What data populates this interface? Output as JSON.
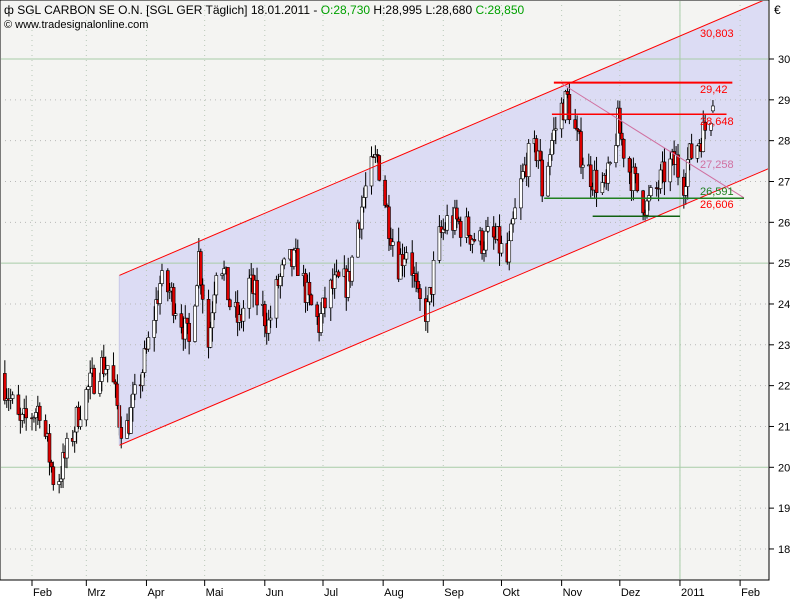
{
  "header": {
    "title": "SGL CARBON SE O.N. [SGL GER  Täglich] 18.01.2011 - ",
    "open": "O:28,730",
    "high": " H:28,995",
    "low": " L:28,680",
    "close": " C:28,850",
    "copyright": "www.tradesignalonline.com"
  },
  "chart_data": {
    "type": "candlestick",
    "currency_label": "€",
    "ylim": [
      17.2,
      31.5
    ],
    "y_ticks": [
      18,
      19,
      20,
      21,
      22,
      23,
      24,
      25,
      26,
      27,
      28,
      29,
      30
    ],
    "x_ticks": [
      {
        "date": "2010-02-01",
        "label": "Feb"
      },
      {
        "date": "2010-03-01",
        "label": "Mrz"
      },
      {
        "date": "2010-04-01",
        "label": "Apr"
      },
      {
        "date": "2010-05-01",
        "label": "Mai"
      },
      {
        "date": "2010-06-01",
        "label": "Jun"
      },
      {
        "date": "2010-07-01",
        "label": "Jul"
      },
      {
        "date": "2010-08-01",
        "label": "Aug"
      },
      {
        "date": "2010-09-01",
        "label": "Sep"
      },
      {
        "date": "2010-10-01",
        "label": "Okt"
      },
      {
        "date": "2010-11-01",
        "label": "Nov"
      },
      {
        "date": "2010-12-01",
        "label": "Dez"
      },
      {
        "date": "2011-01-01",
        "label": "2011"
      },
      {
        "date": "2011-02-01",
        "label": "Feb"
      }
    ],
    "grid": true,
    "major_gridlines": [
      20,
      25,
      30
    ],
    "year_line": "2011-01-01",
    "closes": [
      [
        "2010-01-16",
        22.3
      ],
      [
        "2010-01-26",
        21.0
      ],
      [
        "2010-02-05",
        21.5
      ],
      [
        "2010-02-13",
        19.5
      ],
      [
        "2010-02-20",
        20.5
      ],
      [
        "2010-02-26",
        21.5
      ],
      [
        "2010-03-08",
        22.5
      ],
      [
        "2010-03-13",
        22.5
      ],
      [
        "2010-03-18",
        21.2
      ],
      [
        "2010-03-21",
        20.8
      ],
      [
        "2010-03-28",
        22.0
      ],
      [
        "2010-04-02",
        23.0
      ],
      [
        "2010-04-08",
        24.5
      ],
      [
        "2010-04-13",
        24.3
      ],
      [
        "2010-04-18",
        23.8
      ],
      [
        "2010-04-23",
        23.0
      ],
      [
        "2010-04-28",
        25.2
      ],
      [
        "2010-05-03",
        23.0
      ],
      [
        "2010-05-08",
        25.5
      ],
      [
        "2010-05-14",
        24.0
      ],
      [
        "2010-05-19",
        23.5
      ],
      [
        "2010-05-24",
        24.5
      ],
      [
        "2010-05-29",
        24.0
      ],
      [
        "2010-06-03",
        23.5
      ],
      [
        "2010-06-08",
        24.5
      ],
      [
        "2010-06-13",
        25.0
      ],
      [
        "2010-06-18",
        25.0
      ],
      [
        "2010-06-24",
        24.0
      ],
      [
        "2010-06-29",
        23.5
      ],
      [
        "2010-07-04",
        24.3
      ],
      [
        "2010-07-09",
        24.5
      ],
      [
        "2010-07-14",
        24.5
      ],
      [
        "2010-07-19",
        26.0
      ],
      [
        "2010-07-24",
        27.0
      ],
      [
        "2010-07-29",
        27.6
      ],
      [
        "2010-08-04",
        26.0
      ],
      [
        "2010-08-09",
        25.0
      ],
      [
        "2010-08-14",
        25.5
      ],
      [
        "2010-08-19",
        24.0
      ],
      [
        "2010-08-24",
        23.8
      ],
      [
        "2010-08-29",
        25.5
      ],
      [
        "2010-09-03",
        26.0
      ],
      [
        "2010-09-08",
        26.0
      ],
      [
        "2010-09-14",
        25.8
      ],
      [
        "2010-09-19",
        25.5
      ],
      [
        "2010-09-24",
        25.6
      ],
      [
        "2010-09-29",
        25.5
      ],
      [
        "2010-10-04",
        25.0
      ],
      [
        "2010-10-09",
        26.5
      ],
      [
        "2010-10-14",
        27.5
      ],
      [
        "2010-10-20",
        27.8
      ],
      [
        "2010-10-22",
        26.8
      ],
      [
        "2010-10-27",
        28.0
      ],
      [
        "2010-11-01",
        28.8
      ],
      [
        "2010-11-04",
        29.0
      ],
      [
        "2010-11-09",
        28.0
      ],
      [
        "2010-11-14",
        27.3
      ],
      [
        "2010-11-19",
        27.0
      ],
      [
        "2010-11-24",
        26.8
      ],
      [
        "2010-11-30",
        28.4
      ],
      [
        "2010-12-05",
        27.4
      ],
      [
        "2010-12-10",
        26.8
      ],
      [
        "2010-12-15",
        26.4
      ],
      [
        "2010-12-20",
        26.8
      ],
      [
        "2010-12-25",
        27.3
      ],
      [
        "2010-12-30",
        27.5
      ],
      [
        "2011-01-02",
        26.8
      ],
      [
        "2011-01-05",
        27.5
      ],
      [
        "2011-01-14",
        28.3
      ],
      [
        "2011-01-18",
        28.85
      ]
    ],
    "channel": {
      "start": "2010-03-18",
      "upper": [
        24.7,
        31.4
      ],
      "lower": [
        20.54,
        27.33
      ],
      "upper_label": "30,803",
      "fill": "#dcdcf4",
      "line_color": "#ff0000"
    },
    "levels": [
      {
        "value": 29.42,
        "label": "29,42",
        "color": "#ff0000",
        "from": "2010-10-28",
        "to": "2011-01-28"
      },
      {
        "value": 28.648,
        "label": "28,648",
        "color": "#ff0000",
        "from": "2010-10-27",
        "to": "2011-01-25"
      },
      {
        "value": 26.591,
        "label": "26,591",
        "color": "#208020",
        "from": "2010-10-23",
        "to": "2011-02-03"
      },
      {
        "value": 26.15,
        "label": "",
        "color": "#106010",
        "from": "2010-11-17",
        "to": "2011-01-01"
      }
    ],
    "trendline": {
      "from": [
        "2010-11-01",
        29.4
      ],
      "to": [
        "2011-02-03",
        26.6
      ],
      "label": "27,258",
      "color": "#d070a0"
    },
    "lower_channel_label": "26,606",
    "colors": {
      "up": "#ffffff",
      "down": "#dd0000",
      "background": "#f4f4f2"
    }
  }
}
